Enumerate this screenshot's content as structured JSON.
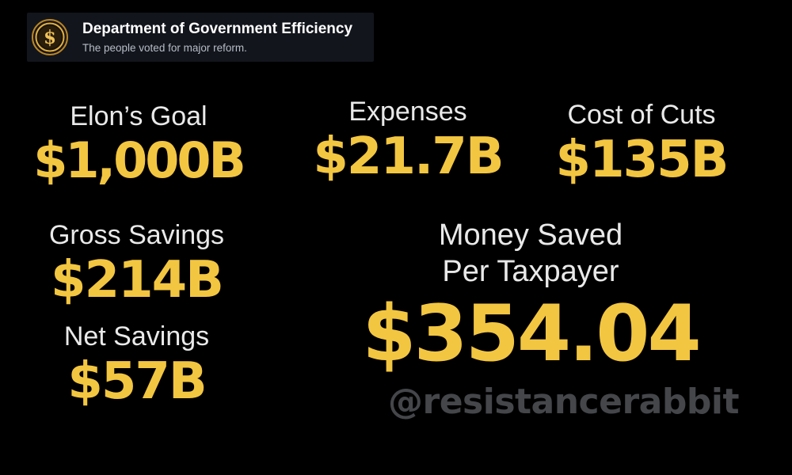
{
  "header": {
    "org_name": "Department of Government Efficiency",
    "tagline": "The people voted for major reform.",
    "logo_icon": "dollar-coin-icon"
  },
  "stats": {
    "goal": {
      "label": "Elon’s Goal",
      "value": "$1,000B"
    },
    "expenses": {
      "label": "Expenses",
      "value": "$21.7B"
    },
    "cost_of_cuts": {
      "label": "Cost of Cuts",
      "value": "$135B"
    },
    "gross_savings": {
      "label": "Gross Savings",
      "value": "$214B"
    },
    "net_savings": {
      "label": "Net Savings",
      "value": "$57B"
    },
    "per_taxpayer": {
      "label_line1": "Money Saved",
      "label_line2": "Per Taxpayer",
      "value": "$354.04"
    }
  },
  "watermark": "@resistancerabbit",
  "colors": {
    "background": "#000000",
    "value_gold": "#f3c641",
    "label_white": "#e9e9e9",
    "watermark_gray": "#44464a",
    "header_bg": "#12151c"
  }
}
